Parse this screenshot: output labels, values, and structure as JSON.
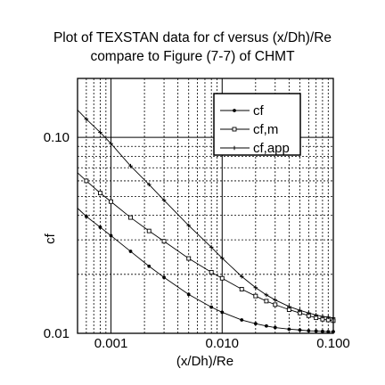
{
  "chart_data": {
    "type": "line",
    "title_lines": [
      "Plot of TEXSTAN data for cf versus (x/Dh)/Re",
      "compare to  Figure (7-7) of CHMT"
    ],
    "xlabel": "(x/Dh)/Re",
    "ylabel": "cf",
    "x_scale": "log",
    "y_scale": "log",
    "xlim": [
      0.0005,
      0.1
    ],
    "ylim": [
      0.01,
      0.2
    ],
    "x_tick_labels": [
      {
        "value": 0.001,
        "label": "0.001"
      },
      {
        "value": 0.01,
        "label": "0.010"
      },
      {
        "value": 0.1,
        "label": "0.100"
      }
    ],
    "y_tick_labels": [
      {
        "value": 0.01,
        "label": "0.01"
      },
      {
        "value": 0.1,
        "label": "0.10"
      }
    ],
    "grid": true,
    "legend_position": "top-right",
    "series": [
      {
        "name": "cf",
        "marker": "filled-circle",
        "x": [
          0.0005,
          0.0006,
          0.0008,
          0.001,
          0.0015,
          0.0022,
          0.003,
          0.005,
          0.008,
          0.01,
          0.015,
          0.02,
          0.025,
          0.03,
          0.04,
          0.05,
          0.06,
          0.07,
          0.08,
          0.09,
          0.1
        ],
        "y": [
          0.0435,
          0.0395,
          0.0348,
          0.0315,
          0.0262,
          0.022,
          0.0193,
          0.0158,
          0.0136,
          0.0128,
          0.0117,
          0.0112,
          0.0109,
          0.0107,
          0.0105,
          0.0104,
          0.0103,
          0.01027,
          0.01023,
          0.0102,
          0.0102
        ]
      },
      {
        "name": "cf,m",
        "marker": "open-square",
        "x": [
          0.0005,
          0.0006,
          0.0008,
          0.001,
          0.0015,
          0.0022,
          0.003,
          0.005,
          0.008,
          0.01,
          0.015,
          0.02,
          0.025,
          0.03,
          0.04,
          0.05,
          0.06,
          0.07,
          0.08,
          0.09,
          0.1
        ],
        "y": [
          0.066,
          0.06,
          0.052,
          0.047,
          0.039,
          0.0333,
          0.0295,
          0.0241,
          0.0205,
          0.0191,
          0.0168,
          0.0155,
          0.0146,
          0.014,
          0.0132,
          0.0127,
          0.0123,
          0.012,
          0.0118,
          0.0117,
          0.0116
        ]
      },
      {
        "name": "cf,app",
        "marker": "plus",
        "x": [
          0.0005,
          0.0006,
          0.0008,
          0.001,
          0.0015,
          0.0022,
          0.003,
          0.005,
          0.008,
          0.01,
          0.015,
          0.02,
          0.025,
          0.03,
          0.04,
          0.05,
          0.06,
          0.07,
          0.08,
          0.09,
          0.1
        ],
        "y": [
          0.138,
          0.124,
          0.106,
          0.093,
          0.0715,
          0.0575,
          0.0478,
          0.0355,
          0.0275,
          0.0242,
          0.0195,
          0.0171,
          0.0157,
          0.0148,
          0.0137,
          0.0131,
          0.0127,
          0.0124,
          0.0122,
          0.0121,
          0.012
        ]
      }
    ]
  }
}
